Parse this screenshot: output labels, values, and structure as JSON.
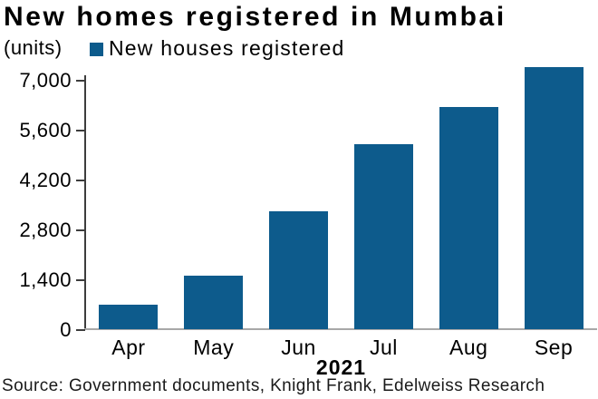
{
  "title": "New homes registered in Mumbai",
  "units_label": "(units)",
  "legend": {
    "label": "New houses registered"
  },
  "source": "Source: Government documents, Knight Frank, Edelweiss Research",
  "chart_data": {
    "type": "bar",
    "title": "New homes registered in Mumbai",
    "ylabel": "(units)",
    "series_name": "New houses registered",
    "categories": [
      "Apr",
      "May",
      "Jun",
      "Jul",
      "Aug",
      "Sep"
    ],
    "values": [
      690,
      1530,
      3330,
      5210,
      6270,
      7380
    ],
    "x_axis_group_label": "2021",
    "ytick_values": [
      0,
      1400,
      2800,
      4200,
      5600,
      7000
    ],
    "ytick_labels": [
      "0",
      "1,400",
      "2,800",
      "4,200",
      "5,600",
      "7,000"
    ],
    "ylim": [
      0,
      7400
    ],
    "grid": false,
    "legend_position": "top-left",
    "bar_color": "#0d5b8c",
    "axis_color": "#3d3d3d",
    "baseline_color": "#a8a8a8"
  }
}
